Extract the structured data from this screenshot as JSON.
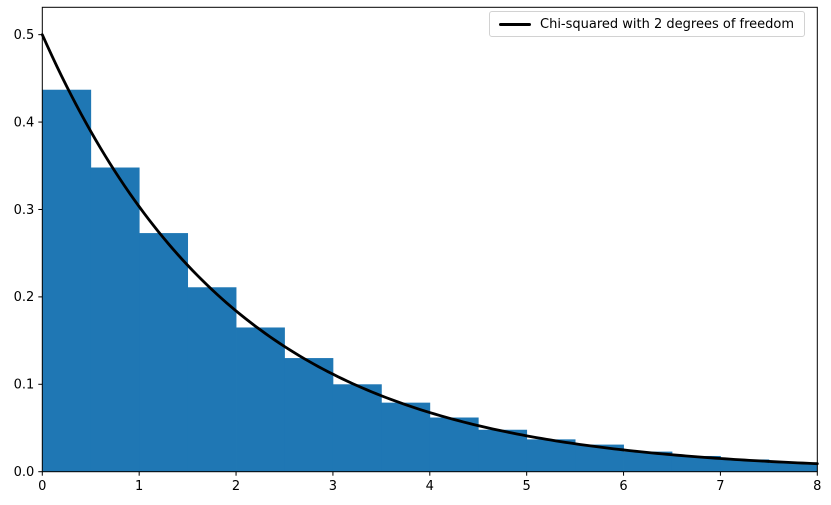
{
  "figure": {
    "background": "#ffffff",
    "frame_color": "#000000"
  },
  "chart_data": {
    "type": "bar",
    "subtype": "histogram-with-density-curve",
    "title": "",
    "xlabel": "",
    "ylabel": "",
    "grid": false,
    "xlim": [
      0,
      8
    ],
    "ylim": [
      0,
      0.5313
    ],
    "bar_color": "#1f77b4",
    "bin_edges": [
      0,
      0.5,
      1,
      1.5,
      2,
      2.5,
      3,
      3.5,
      4,
      4.5,
      5,
      5.5,
      6,
      6.5,
      7,
      7.5,
      8
    ],
    "bar_heights": [
      0.437,
      0.348,
      0.273,
      0.211,
      0.165,
      0.13,
      0.1,
      0.079,
      0.062,
      0.048,
      0.037,
      0.031,
      0.023,
      0.018,
      0.014,
      0.01
    ],
    "curve": {
      "label": "Chi-squared with 2 degrees of freedom",
      "color": "#000000",
      "line_width": 2.8,
      "formula": "y = 0.5 * exp(-x/2)",
      "amplitude": 0.5,
      "rate": 0.5,
      "x_start": 0,
      "x_end": 8
    },
    "xticks": {
      "values": [
        0,
        1,
        2,
        3,
        4,
        5,
        6,
        7,
        8
      ],
      "labels": [
        "0",
        "1",
        "2",
        "3",
        "4",
        "5",
        "6",
        "7",
        "8"
      ]
    },
    "yticks": {
      "values": [
        0,
        0.1,
        0.2,
        0.3,
        0.4,
        0.5
      ],
      "labels": [
        "0.0",
        "0.1",
        "0.2",
        "0.3",
        "0.4",
        "0.5"
      ]
    },
    "legend": {
      "label": "Chi-squared with 2 degrees of freedom",
      "line_color": "#000000",
      "position": "upper right"
    }
  }
}
